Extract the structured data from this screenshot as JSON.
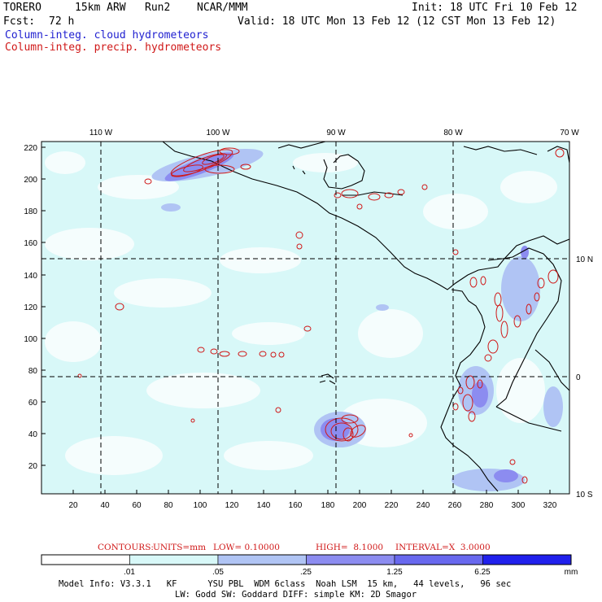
{
  "header": {
    "model": "TORERO",
    "resolution": "15km ARW",
    "run": "Run2",
    "org": "NCAR/MMM",
    "init": "Init: 18 UTC Fri 10 Feb 12",
    "fcst_label": "Fcst:",
    "fcst_value": "72 h",
    "valid": "Valid: 18 UTC Mon 13 Feb 12 (12 CST Mon 13 Feb 12)"
  },
  "legend_fields": {
    "cloud": "Column-integ. cloud hydrometeors",
    "precip": "Column-integ. precip. hydrometeors"
  },
  "map": {
    "top_longitudes": [
      "110 W",
      "100 W",
      "90 W",
      "80 W",
      "70 W"
    ],
    "right_latitudes": [
      "10 N",
      "0",
      "10 S"
    ],
    "y_ticks": [
      "220",
      "200",
      "180",
      "160",
      "140",
      "120",
      "100",
      "80",
      "60",
      "40",
      "20"
    ],
    "x_ticks": [
      "20",
      "40",
      "60",
      "80",
      "100",
      "120",
      "140",
      "160",
      "180",
      "200",
      "220",
      "240",
      "260",
      "280",
      "300",
      "320"
    ]
  },
  "contours_line": {
    "label": "CONTOURS:",
    "units": "UNITS=mm",
    "low": "LOW= 0.10000",
    "high": "HIGH=  8.1000",
    "interval": "INTERVAL=X  3.0000"
  },
  "colorbar": {
    "labels": [
      ".01",
      ".05",
      ".25",
      "1.25",
      "6.25"
    ],
    "units": "mm",
    "colors": [
      "#ffffff",
      "#d8f8f8",
      "#b0c4f4",
      "#8c8cf0",
      "#6868ee",
      "#2020ec"
    ]
  },
  "footer": {
    "line1": "Model Info: V3.3.1   KF      YSU PBL  WDM 6class  Noah LSM  15 km,   44 levels,   96 sec",
    "line2": "LW: Godd SW: Goddard DIFF: simple KM: 2D Smagor"
  }
}
